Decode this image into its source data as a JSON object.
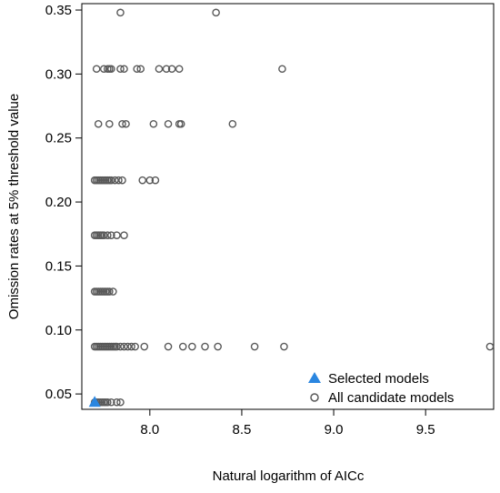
{
  "colors": {
    "candidate": "#595959",
    "selected": "#2a86e0",
    "axis": "#000000"
  },
  "chart_data": {
    "type": "scatter",
    "xlabel": "Natural logarithm of AICc",
    "ylabel": "Omission rates at 5% threshold value",
    "xlim": [
      7.63,
      9.87
    ],
    "ylim": [
      0.038,
      0.355
    ],
    "x_ticks": [
      8.0,
      8.5,
      9.0,
      9.5
    ],
    "x_tick_labels": [
      "8.0",
      "8.5",
      "9.0",
      "9.5"
    ],
    "y_ticks": [
      0.05,
      0.1,
      0.15,
      0.2,
      0.25,
      0.3,
      0.35
    ],
    "y_tick_labels": [
      "0.05",
      "0.10",
      "0.15",
      "0.20",
      "0.25",
      "0.30",
      "0.35"
    ],
    "legend_position": "bottom-right",
    "series": [
      {
        "name": "Selected models",
        "marker": "filled-triangle",
        "points": [
          [
            7.7,
            0.0435
          ]
        ]
      },
      {
        "name": "All candidate models",
        "marker": "open-circle",
        "points": [
          [
            7.84,
            0.348
          ],
          [
            8.36,
            0.348
          ],
          [
            7.71,
            0.304
          ],
          [
            7.75,
            0.304
          ],
          [
            7.77,
            0.304
          ],
          [
            7.78,
            0.304
          ],
          [
            7.79,
            0.304
          ],
          [
            7.84,
            0.304
          ],
          [
            7.86,
            0.304
          ],
          [
            7.93,
            0.304
          ],
          [
            7.95,
            0.304
          ],
          [
            8.05,
            0.304
          ],
          [
            8.09,
            0.304
          ],
          [
            8.12,
            0.304
          ],
          [
            8.16,
            0.304
          ],
          [
            8.72,
            0.304
          ],
          [
            7.72,
            0.261
          ],
          [
            7.78,
            0.261
          ],
          [
            7.85,
            0.261
          ],
          [
            7.87,
            0.261
          ],
          [
            8.02,
            0.261
          ],
          [
            8.1,
            0.261
          ],
          [
            8.16,
            0.261
          ],
          [
            8.17,
            0.261
          ],
          [
            8.45,
            0.261
          ],
          [
            7.7,
            0.217
          ],
          [
            7.71,
            0.217
          ],
          [
            7.72,
            0.217
          ],
          [
            7.73,
            0.217
          ],
          [
            7.74,
            0.217
          ],
          [
            7.75,
            0.217
          ],
          [
            7.76,
            0.217
          ],
          [
            7.77,
            0.217
          ],
          [
            7.78,
            0.217
          ],
          [
            7.79,
            0.217
          ],
          [
            7.81,
            0.217
          ],
          [
            7.83,
            0.217
          ],
          [
            7.85,
            0.217
          ],
          [
            7.96,
            0.217
          ],
          [
            8.0,
            0.217
          ],
          [
            8.03,
            0.217
          ],
          [
            7.7,
            0.174
          ],
          [
            7.71,
            0.174
          ],
          [
            7.72,
            0.174
          ],
          [
            7.73,
            0.174
          ],
          [
            7.74,
            0.174
          ],
          [
            7.75,
            0.174
          ],
          [
            7.77,
            0.174
          ],
          [
            7.79,
            0.174
          ],
          [
            7.82,
            0.174
          ],
          [
            7.86,
            0.174
          ],
          [
            7.7,
            0.13
          ],
          [
            7.71,
            0.13
          ],
          [
            7.72,
            0.13
          ],
          [
            7.73,
            0.13
          ],
          [
            7.74,
            0.13
          ],
          [
            7.75,
            0.13
          ],
          [
            7.76,
            0.13
          ],
          [
            7.77,
            0.13
          ],
          [
            7.78,
            0.13
          ],
          [
            7.8,
            0.13
          ],
          [
            7.7,
            0.087
          ],
          [
            7.71,
            0.087
          ],
          [
            7.72,
            0.087
          ],
          [
            7.73,
            0.087
          ],
          [
            7.74,
            0.087
          ],
          [
            7.75,
            0.087
          ],
          [
            7.76,
            0.087
          ],
          [
            7.77,
            0.087
          ],
          [
            7.78,
            0.087
          ],
          [
            7.79,
            0.087
          ],
          [
            7.8,
            0.087
          ],
          [
            7.81,
            0.087
          ],
          [
            7.82,
            0.087
          ],
          [
            7.84,
            0.087
          ],
          [
            7.86,
            0.087
          ],
          [
            7.88,
            0.087
          ],
          [
            7.9,
            0.087
          ],
          [
            7.92,
            0.087
          ],
          [
            7.97,
            0.087
          ],
          [
            8.1,
            0.087
          ],
          [
            8.18,
            0.087
          ],
          [
            8.23,
            0.087
          ],
          [
            8.3,
            0.087
          ],
          [
            8.37,
            0.087
          ],
          [
            8.57,
            0.087
          ],
          [
            8.73,
            0.087
          ],
          [
            9.85,
            0.087
          ],
          [
            7.7,
            0.0435
          ],
          [
            7.71,
            0.0435
          ],
          [
            7.72,
            0.0435
          ],
          [
            7.73,
            0.0435
          ],
          [
            7.74,
            0.0435
          ],
          [
            7.75,
            0.0435
          ],
          [
            7.76,
            0.0435
          ],
          [
            7.77,
            0.0435
          ],
          [
            7.79,
            0.0435
          ],
          [
            7.82,
            0.0435
          ],
          [
            7.84,
            0.0435
          ]
        ]
      }
    ]
  }
}
